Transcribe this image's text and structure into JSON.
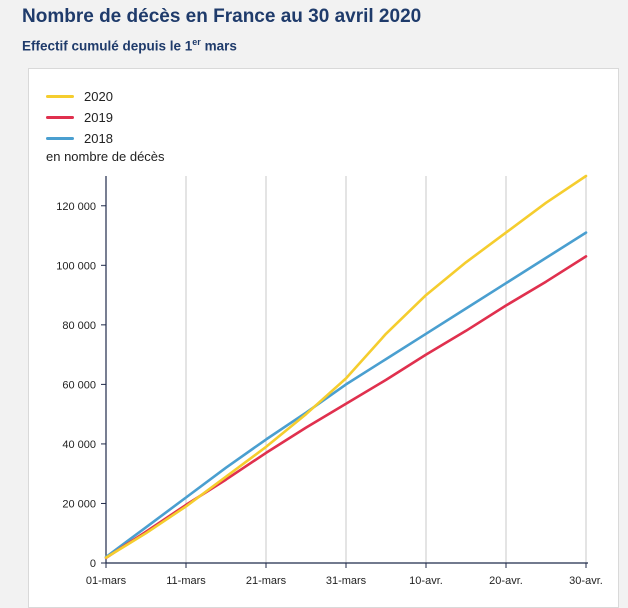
{
  "header": {
    "title": "Nombre de décès en France au 30 avril 2020",
    "subtitle_main": "Effectif cumulé depuis le 1",
    "subtitle_sup": "er",
    "subtitle_end": " mars"
  },
  "chart_data": {
    "type": "line",
    "ylabel": "en nombre de décès",
    "ylim": [
      0,
      130000
    ],
    "y_ticks": [
      0,
      20000,
      40000,
      60000,
      80000,
      100000,
      120000
    ],
    "y_tick_labels": [
      "0",
      "20 000",
      "40 000",
      "60 000",
      "80 000",
      "100 000",
      "120 000"
    ],
    "x_ticks": [
      0,
      10,
      20,
      30,
      40,
      50,
      60
    ],
    "x_tick_labels": [
      "01-mars",
      "11-mars",
      "21-mars",
      "31-mars",
      "10-avr.",
      "20-avr.",
      "30-avr."
    ],
    "xlim": [
      0,
      60
    ],
    "grid": "vertical",
    "legend_position": "top-left",
    "series": [
      {
        "name": "2020",
        "color": "#f5cd2e",
        "x": [
          0,
          5,
          10,
          15,
          20,
          25,
          30,
          35,
          40,
          45,
          50,
          55,
          60
        ],
        "values": [
          1800,
          10000,
          19000,
          29000,
          39000,
          50000,
          62000,
          77000,
          90000,
          101000,
          111000,
          121000,
          130000
        ]
      },
      {
        "name": "2019",
        "color": "#e0304e",
        "x": [
          0,
          5,
          10,
          15,
          20,
          25,
          30,
          35,
          40,
          45,
          50,
          55,
          60
        ],
        "values": [
          1700,
          10500,
          19500,
          28000,
          37000,
          45500,
          53500,
          61500,
          70000,
          78000,
          86500,
          94500,
          103000
        ]
      },
      {
        "name": "2018",
        "color": "#4a9fd0",
        "x": [
          0,
          5,
          10,
          15,
          20,
          25,
          30,
          35,
          40,
          45,
          50,
          55,
          60
        ],
        "values": [
          2000,
          12000,
          22000,
          32000,
          41500,
          50500,
          60000,
          68500,
          77000,
          85500,
          94000,
          102500,
          111000
        ]
      }
    ]
  }
}
